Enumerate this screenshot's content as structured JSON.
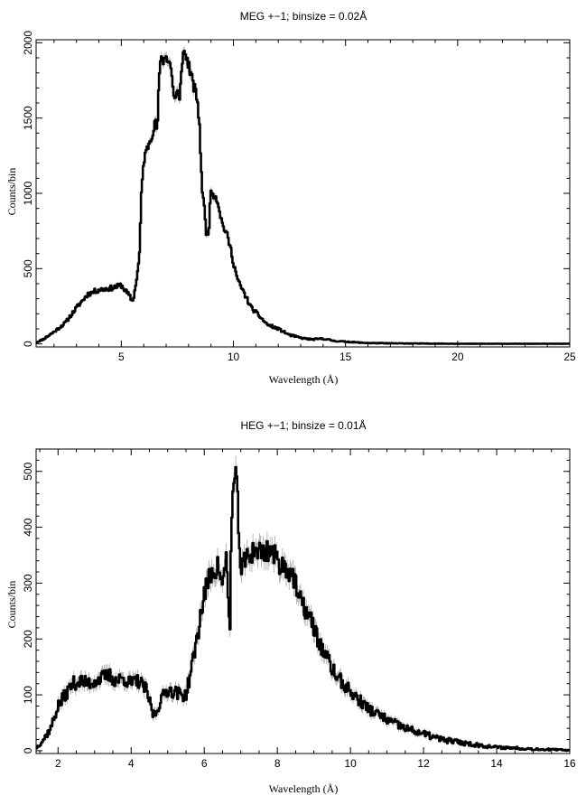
{
  "chart_data": [
    {
      "type": "line",
      "title": "MEG +−1; binsize = 0.02Å",
      "xlabel": "Wavelength (Å)",
      "ylabel": "Counts/bin",
      "xlim": [
        1.2,
        25
      ],
      "ylim": [
        -20,
        2020
      ],
      "xticks": [
        5,
        10,
        15,
        20,
        25
      ],
      "yticks": [
        0,
        500,
        1000,
        1500,
        2000
      ],
      "grid": false,
      "series": [
        {
          "x": [
            1.2,
            1.5,
            2.0,
            2.5,
            3.0,
            3.5,
            4.0,
            4.5,
            4.8,
            5.0,
            5.2,
            5.4,
            5.5,
            5.6,
            5.8,
            5.9,
            6.0,
            6.2,
            6.4,
            6.5,
            6.6,
            6.7,
            6.8,
            6.9,
            7.0,
            7.1,
            7.2,
            7.3,
            7.4,
            7.5,
            7.6,
            7.7,
            7.8,
            7.9,
            8.0,
            8.1,
            8.2,
            8.3,
            8.4,
            8.5,
            8.6,
            8.7,
            8.8,
            8.9,
            9.0,
            9.2,
            9.3,
            9.5,
            9.7,
            9.9,
            10.0,
            10.2,
            10.5,
            10.8,
            11.0,
            11.5,
            12.0,
            12.5,
            13.0,
            13.5,
            14.0,
            14.5,
            15.0,
            15.5,
            16.0,
            17.0,
            18.0,
            19.0,
            20.0,
            22.0,
            25.0
          ],
          "y": [
            10,
            30,
            80,
            140,
            240,
            330,
            360,
            370,
            380,
            390,
            350,
            310,
            280,
            350,
            560,
            1000,
            1220,
            1320,
            1410,
            1480,
            1420,
            1800,
            1900,
            1880,
            1920,
            1880,
            1860,
            1700,
            1620,
            1680,
            1600,
            1880,
            1940,
            1900,
            1860,
            1790,
            1720,
            1680,
            1620,
            1400,
            1050,
            900,
            720,
            760,
            1020,
            980,
            950,
            800,
            730,
            620,
            540,
            420,
            330,
            240,
            210,
            130,
            100,
            60,
            40,
            30,
            35,
            20,
            15,
            10,
            6,
            4,
            3,
            2,
            1,
            1,
            1
          ]
        }
      ]
    },
    {
      "type": "line",
      "title": "HEG +−1; binsize = 0.01Å",
      "xlabel": "Wavelength (Å)",
      "ylabel": "Counts/bin",
      "xlim": [
        1.4,
        16
      ],
      "ylim": [
        -5,
        540
      ],
      "xticks": [
        2,
        4,
        6,
        8,
        10,
        12,
        14,
        16
      ],
      "yticks": [
        0,
        100,
        200,
        300,
        400,
        500
      ],
      "grid": false,
      "series": [
        {
          "x": [
            1.4,
            1.6,
            1.8,
            2.0,
            2.2,
            2.4,
            2.6,
            2.8,
            3.0,
            3.2,
            3.4,
            3.6,
            3.8,
            4.0,
            4.2,
            4.4,
            4.5,
            4.6,
            4.7,
            4.8,
            5.0,
            5.2,
            5.4,
            5.5,
            5.6,
            5.8,
            6.0,
            6.2,
            6.4,
            6.5,
            6.6,
            6.7,
            6.75,
            6.8,
            6.85,
            6.9,
            6.95,
            7.0,
            7.2,
            7.4,
            7.6,
            7.8,
            8.0,
            8.2,
            8.4,
            8.6,
            8.8,
            9.0,
            9.2,
            9.4,
            9.6,
            9.8,
            10.0,
            10.5,
            11.0,
            11.5,
            12.0,
            12.5,
            13.0,
            13.5,
            14.0,
            14.5,
            15.0,
            15.5,
            16.0
          ],
          "y": [
            5,
            20,
            40,
            80,
            100,
            120,
            125,
            120,
            125,
            130,
            135,
            125,
            130,
            120,
            125,
            110,
            90,
            65,
            70,
            90,
            110,
            105,
            100,
            100,
            130,
            200,
            280,
            320,
            330,
            290,
            350,
            210,
            420,
            470,
            490,
            460,
            400,
            320,
            350,
            360,
            355,
            360,
            340,
            330,
            320,
            270,
            250,
            220,
            185,
            160,
            135,
            120,
            105,
            75,
            55,
            40,
            30,
            20,
            15,
            10,
            6,
            5,
            3,
            2,
            1
          ]
        }
      ]
    }
  ]
}
